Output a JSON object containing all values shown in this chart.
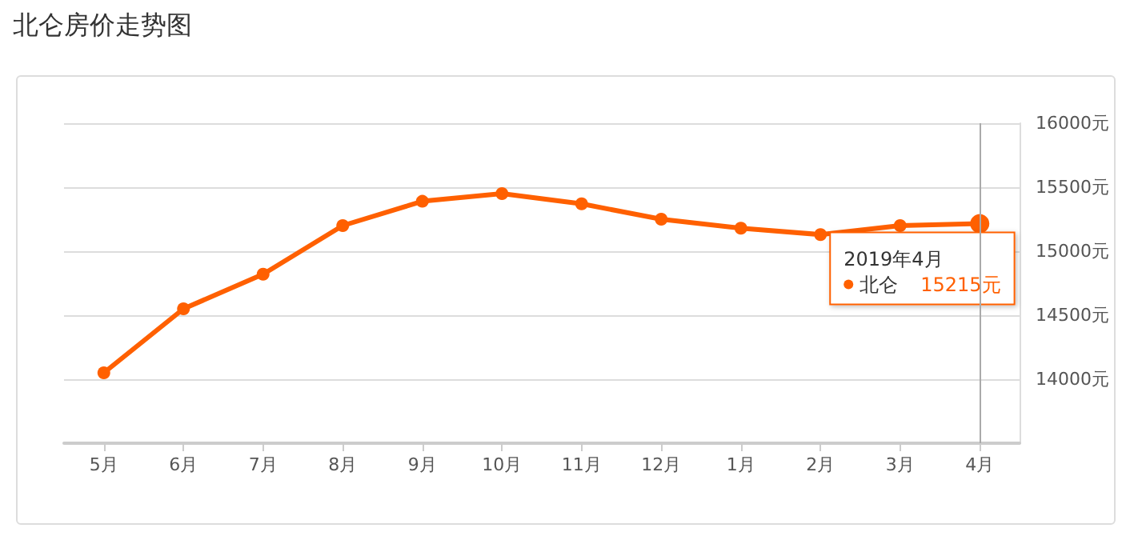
{
  "chart_data": {
    "type": "line",
    "title": "北仑房价走势图",
    "categories": [
      "5月",
      "6月",
      "7月",
      "8月",
      "9月",
      "10月",
      "11月",
      "12月",
      "1月",
      "2月",
      "3月",
      "4月"
    ],
    "series": [
      {
        "name": "北仑",
        "color": "#ff6000",
        "values": [
          14050,
          14550,
          14820,
          15200,
          15390,
          15450,
          15370,
          15250,
          15180,
          15130,
          15200,
          15215
        ],
        "value_labels": [
          null,
          null,
          null,
          null,
          null,
          null,
          null,
          null,
          null,
          null,
          null,
          "15215元"
        ]
      }
    ],
    "ylim": [
      13500,
      16000
    ],
    "yticks": [
      {
        "value": 14000,
        "label": "14000元"
      },
      {
        "value": 14500,
        "label": "14500元"
      },
      {
        "value": 15000,
        "label": "15000元"
      },
      {
        "value": 15500,
        "label": "15500元"
      },
      {
        "value": 16000,
        "label": "16000元"
      }
    ],
    "grid": "y",
    "marker": "circle",
    "line_style": "solid",
    "legend": "right",
    "ref_lines": [
      {
        "axis": "x",
        "value": "4月",
        "color": "#aaaaaa"
      }
    ],
    "annotations": [
      "2019年4月"
    ]
  }
}
